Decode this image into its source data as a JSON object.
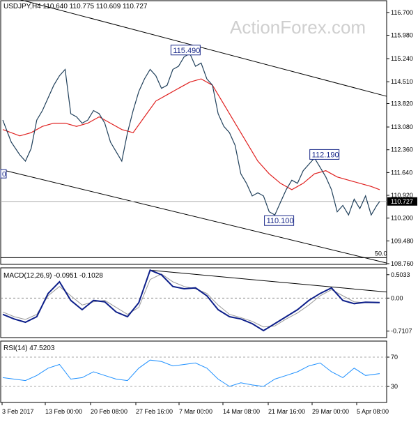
{
  "header": {
    "title": "USDJPY,H4  110.640 110.775 110.609 110.727",
    "watermark": "ActionForex.com"
  },
  "colors": {
    "price": "#1f3f5a",
    "ma": "#e0201f",
    "channel": "#000000",
    "macd": "#0d1f8a",
    "signal": "#999999",
    "rsi": "#1e90ff",
    "label_border": "#1b2a8a",
    "current_price_bg": "#000000"
  },
  "chart_data": [
    {
      "type": "line",
      "series": [
        {
          "x": [
            0,
            3,
            6,
            8,
            10,
            12,
            14,
            16,
            18,
            20,
            22,
            24,
            26,
            28,
            30,
            32,
            34,
            36,
            38,
            40,
            42,
            44,
            46,
            48,
            50,
            52,
            54,
            56,
            58,
            60,
            62,
            64,
            66,
            68,
            70,
            72,
            74,
            76,
            78,
            80,
            82,
            84,
            86,
            88,
            90,
            92,
            94,
            96,
            98,
            100,
            102,
            104,
            106,
            108,
            110,
            112,
            114,
            116,
            118,
            120,
            122,
            124,
            126,
            128,
            130,
            132,
            133
          ],
          "values": [
            113.3,
            112.6,
            112.2,
            112.0,
            112.4,
            113.3,
            113.6,
            114.0,
            114.4,
            114.7,
            114.9,
            113.5,
            113.4,
            113.2,
            113.3,
            113.6,
            113.5,
            113.2,
            112.6,
            112.3,
            112.0,
            112.9,
            113.6,
            114.2,
            114.6,
            114.9,
            114.7,
            114.3,
            114.4,
            114.9,
            115.0,
            115.3,
            115.4,
            115.0,
            115.1,
            114.6,
            114.4,
            113.5,
            113.1,
            112.9,
            112.5,
            111.6,
            111.3,
            110.9,
            111.0,
            110.9,
            110.4,
            110.3,
            110.7,
            111.1,
            111.4,
            111.3,
            111.7,
            111.9,
            112.1,
            111.8,
            111.5,
            111.1,
            110.4,
            110.6,
            110.3,
            110.8,
            110.5,
            110.9,
            110.3,
            110.6,
            110.727
          ]
        },
        {
          "x": [
            0,
            6,
            10,
            14,
            18,
            22,
            26,
            30,
            34,
            38,
            42,
            46,
            50,
            54,
            58,
            62,
            66,
            70,
            74,
            78,
            82,
            86,
            90,
            94,
            98,
            102,
            106,
            110,
            114,
            118,
            122,
            126,
            130,
            133
          ],
          "values": [
            113.0,
            112.8,
            112.9,
            113.1,
            113.2,
            113.2,
            113.1,
            113.2,
            113.4,
            113.2,
            113.0,
            112.9,
            113.4,
            113.9,
            114.1,
            114.3,
            114.5,
            114.6,
            114.4,
            113.8,
            113.2,
            112.6,
            112.0,
            111.6,
            111.3,
            111.1,
            111.3,
            111.6,
            111.7,
            111.5,
            111.4,
            111.3,
            111.2,
            111.1
          ]
        }
      ],
      "y_ticks": [
        "116.700",
        "115.980",
        "115.240",
        "114.510",
        "113.820",
        "113.080",
        "112.360",
        "111.640",
        "110.920",
        "110.200",
        "109.480",
        "108.760"
      ],
      "ylim": [
        108.76,
        117.05
      ],
      "annotations": [
        {
          "text": "115.490",
          "x": 64.5,
          "y": 115.49
        },
        {
          "text": "112.190",
          "x": 113.5,
          "y": 112.19
        },
        {
          "text": "110.100",
          "x": 97.5,
          "y": 110.1
        },
        {
          "text": "0",
          "x": 0,
          "y": 111.6
        },
        {
          "text": "50.0",
          "x": 133,
          "y": 108.95
        }
      ],
      "current_price": "110.727"
    },
    {
      "type": "line",
      "title": "MACD(12,26,9) -0.0951 -0.1028",
      "series": [
        {
          "x": [
            0,
            4,
            8,
            12,
            16,
            20,
            24,
            28,
            32,
            36,
            40,
            44,
            48,
            52,
            56,
            60,
            64,
            68,
            72,
            76,
            80,
            84,
            88,
            92,
            96,
            100,
            104,
            108,
            112,
            116,
            120,
            124,
            128,
            133
          ],
          "values": [
            -0.35,
            -0.45,
            -0.52,
            -0.4,
            0.1,
            0.35,
            -0.05,
            -0.25,
            -0.05,
            -0.08,
            -0.3,
            -0.4,
            -0.1,
            0.6,
            0.5,
            0.25,
            0.2,
            0.22,
            0.05,
            -0.25,
            -0.4,
            -0.45,
            -0.55,
            -0.7,
            -0.55,
            -0.4,
            -0.25,
            -0.05,
            0.1,
            0.22,
            -0.05,
            -0.12,
            -0.09,
            -0.0951
          ]
        },
        {
          "x": [
            0,
            4,
            8,
            12,
            16,
            20,
            24,
            28,
            32,
            36,
            40,
            44,
            48,
            52,
            56,
            60,
            64,
            68,
            72,
            76,
            80,
            84,
            88,
            92,
            96,
            100,
            104,
            108,
            112,
            116,
            120,
            124,
            128,
            133
          ],
          "values": [
            -0.3,
            -0.4,
            -0.46,
            -0.35,
            0.05,
            0.25,
            0.05,
            -0.15,
            -0.08,
            -0.05,
            -0.2,
            -0.35,
            -0.2,
            0.4,
            0.52,
            0.35,
            0.25,
            0.2,
            0.1,
            -0.15,
            -0.35,
            -0.42,
            -0.5,
            -0.62,
            -0.6,
            -0.45,
            -0.32,
            -0.15,
            0.05,
            0.18,
            0.05,
            -0.08,
            -0.1,
            -0.1028
          ]
        }
      ],
      "y_ticks": [
        "0.5033",
        "0.00",
        "-0.7107"
      ],
      "ylim": [
        -0.82,
        0.62
      ]
    },
    {
      "type": "line",
      "title": "RSI(14) 47.5203",
      "series": [
        {
          "x": [
            0,
            4,
            8,
            12,
            16,
            20,
            24,
            28,
            32,
            36,
            40,
            44,
            48,
            52,
            56,
            60,
            64,
            68,
            72,
            76,
            80,
            84,
            88,
            92,
            96,
            100,
            104,
            108,
            112,
            116,
            120,
            124,
            128,
            133
          ],
          "values": [
            42,
            40,
            38,
            45,
            55,
            60,
            40,
            42,
            50,
            45,
            40,
            38,
            55,
            66,
            64,
            58,
            60,
            62,
            55,
            40,
            30,
            35,
            32,
            30,
            40,
            45,
            50,
            58,
            62,
            50,
            42,
            55,
            45,
            47.52
          ]
        }
      ],
      "y_ticks": [
        "70",
        "30"
      ],
      "ylim": [
        10,
        90
      ]
    }
  ],
  "x_axis": {
    "labels": [
      "3 Feb 2017",
      "13 Feb 00:00",
      "20 Feb 08:00",
      "27 Feb 16:00",
      "7 Mar 00:00",
      "14 Mar 08:00",
      "21 Mar 16:00",
      "29 Mar 00:00",
      "5 Apr 08:00"
    ]
  }
}
